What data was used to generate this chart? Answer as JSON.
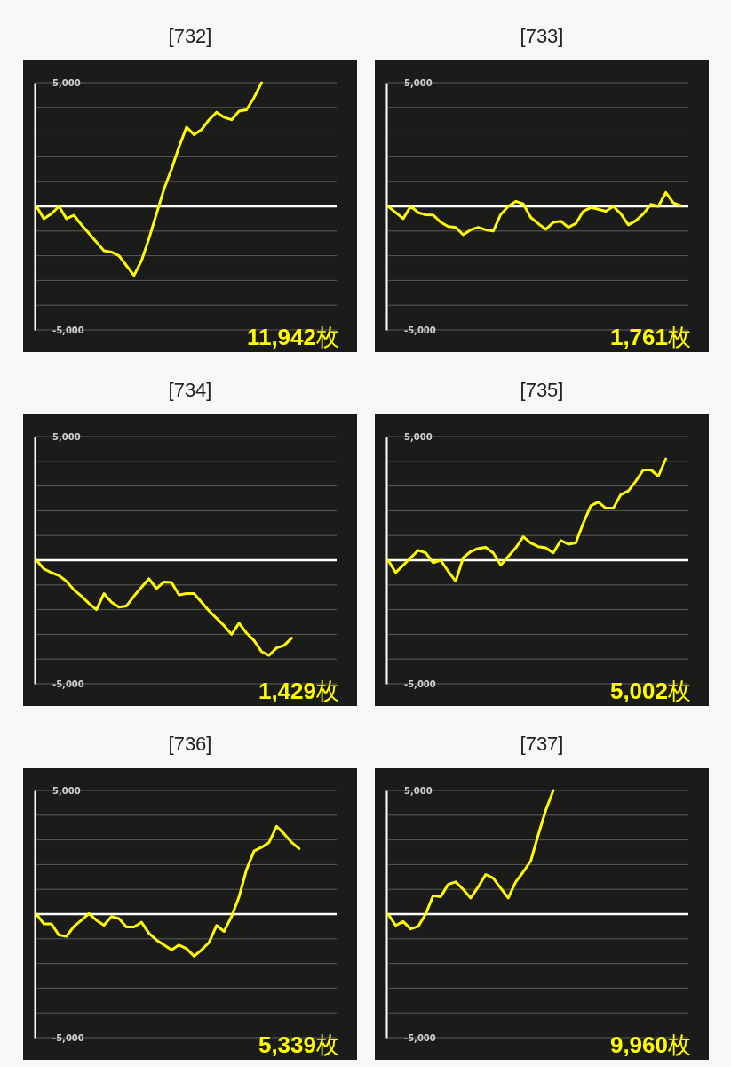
{
  "chart_data": [
    {
      "type": "line",
      "title": "[732]",
      "categories": [
        null,
        null,
        null,
        null,
        null,
        null,
        null,
        null,
        null,
        null,
        null,
        null,
        null,
        null,
        null,
        null,
        null,
        null,
        null,
        null,
        null,
        null,
        null,
        null,
        null,
        null,
        null,
        null,
        null,
        null,
        null,
        null,
        null,
        null,
        null,
        null,
        null,
        null,
        null,
        null,
        null
      ],
      "series": [
        {
          "color": "#ffff00",
          "values": [
            0,
            -500,
            -300,
            0,
            -500,
            -360,
            -750,
            -1100,
            -1450,
            -1800,
            -1850,
            -2000,
            -2400,
            -2800,
            -2200,
            -1300,
            -300,
            700,
            1500,
            2400,
            3200,
            2900,
            3100,
            3500,
            3800,
            3600,
            3500,
            3850,
            3900,
            4400,
            5000,
            null,
            null,
            null,
            null,
            null,
            null,
            null,
            null,
            null,
            null
          ]
        }
      ],
      "ylim": [
        -5000,
        5000
      ],
      "yticks": [
        {
          "value": -5000,
          "label": "-5,000"
        },
        {
          "value": -4000,
          "label": null
        },
        {
          "value": -3000,
          "label": null
        },
        {
          "value": -2000,
          "label": null
        },
        {
          "value": -1000,
          "label": null
        },
        {
          "value": 0,
          "label": null
        },
        {
          "value": 1000,
          "label": null
        },
        {
          "value": 2000,
          "label": null
        },
        {
          "value": 3000,
          "label": null
        },
        {
          "value": 4000,
          "label": null
        },
        {
          "value": 5000,
          "label": "5,000"
        }
      ],
      "grid": "y",
      "tick_labels": "y",
      "ref_lines": [
        {
          "axis": "y",
          "value": 0,
          "color": "#ffffff"
        }
      ],
      "annotations": [
        "11,942枚"
      ]
    },
    {
      "type": "line",
      "title": "[733]",
      "categories": [
        null,
        null,
        null,
        null,
        null,
        null,
        null,
        null,
        null,
        null,
        null,
        null,
        null,
        null,
        null,
        null,
        null,
        null,
        null,
        null,
        null,
        null,
        null,
        null,
        null,
        null,
        null,
        null,
        null,
        null,
        null,
        null,
        null,
        null,
        null,
        null,
        null,
        null,
        null,
        null,
        null
      ],
      "series": [
        {
          "color": "#ffff00",
          "values": [
            0,
            -250,
            -500,
            0,
            -250,
            -340,
            -350,
            -640,
            -820,
            -850,
            -1150,
            -950,
            -850,
            -950,
            -1000,
            -330,
            0,
            200,
            100,
            -450,
            -700,
            -930,
            -650,
            -600,
            -850,
            -700,
            -200,
            -50,
            -120,
            -200,
            0,
            -300,
            -750,
            -580,
            -300,
            80,
            0,
            560,
            140,
            30,
            null
          ]
        }
      ],
      "ylim": [
        -5000,
        5000
      ],
      "yticks": [
        {
          "value": -5000,
          "label": "-5,000"
        },
        {
          "value": -4000,
          "label": null
        },
        {
          "value": -3000,
          "label": null
        },
        {
          "value": -2000,
          "label": null
        },
        {
          "value": -1000,
          "label": null
        },
        {
          "value": 0,
          "label": null
        },
        {
          "value": 1000,
          "label": null
        },
        {
          "value": 2000,
          "label": null
        },
        {
          "value": 3000,
          "label": null
        },
        {
          "value": 4000,
          "label": null
        },
        {
          "value": 5000,
          "label": "5,000"
        }
      ],
      "grid": "y",
      "tick_labels": "y",
      "ref_lines": [
        {
          "axis": "y",
          "value": 0,
          "color": "#ffffff"
        }
      ],
      "annotations": [
        "1,761枚"
      ]
    },
    {
      "type": "line",
      "title": "[734]",
      "categories": [
        null,
        null,
        null,
        null,
        null,
        null,
        null,
        null,
        null,
        null,
        null,
        null,
        null,
        null,
        null,
        null,
        null,
        null,
        null,
        null,
        null,
        null,
        null,
        null,
        null,
        null,
        null,
        null,
        null,
        null,
        null,
        null,
        null,
        null,
        null,
        null,
        null,
        null,
        null,
        null,
        null
      ],
      "series": [
        {
          "color": "#ffff00",
          "values": [
            0,
            -350,
            -500,
            -620,
            -850,
            -1200,
            -1450,
            -1750,
            -2000,
            -1350,
            -1700,
            -1900,
            -1850,
            -1450,
            -1100,
            -750,
            -1150,
            -880,
            -900,
            -1400,
            -1350,
            -1350,
            -1700,
            -2050,
            -2350,
            -2650,
            -3000,
            -2550,
            -2950,
            -3250,
            -3700,
            -3850,
            -3550,
            -3450,
            -3150,
            null,
            null,
            null,
            null,
            null,
            null
          ]
        }
      ],
      "ylim": [
        -5000,
        5000
      ],
      "yticks": [
        {
          "value": -5000,
          "label": "-5,000"
        },
        {
          "value": -4000,
          "label": null
        },
        {
          "value": -3000,
          "label": null
        },
        {
          "value": -2000,
          "label": null
        },
        {
          "value": -1000,
          "label": null
        },
        {
          "value": 0,
          "label": null
        },
        {
          "value": 1000,
          "label": null
        },
        {
          "value": 2000,
          "label": null
        },
        {
          "value": 3000,
          "label": null
        },
        {
          "value": 4000,
          "label": null
        },
        {
          "value": 5000,
          "label": "5,000"
        }
      ],
      "grid": "y",
      "tick_labels": "y",
      "ref_lines": [
        {
          "axis": "y",
          "value": 0,
          "color": "#ffffff"
        }
      ],
      "annotations": [
        "1,429枚"
      ]
    },
    {
      "type": "line",
      "title": "[735]",
      "categories": [
        null,
        null,
        null,
        null,
        null,
        null,
        null,
        null,
        null,
        null,
        null,
        null,
        null,
        null,
        null,
        null,
        null,
        null,
        null,
        null,
        null,
        null,
        null,
        null,
        null,
        null,
        null,
        null,
        null,
        null,
        null,
        null,
        null,
        null,
        null,
        null,
        null,
        null,
        null,
        null,
        null
      ],
      "series": [
        {
          "color": "#ffff00",
          "values": [
            0,
            -500,
            -200,
            100,
            400,
            300,
            -100,
            0,
            -450,
            -850,
            100,
            350,
            480,
            520,
            300,
            -200,
            150,
            500,
            950,
            700,
            550,
            500,
            300,
            800,
            650,
            700,
            1500,
            2200,
            2350,
            2100,
            2100,
            2650,
            2800,
            3200,
            3650,
            3650,
            3400,
            4100,
            null,
            null,
            null
          ]
        }
      ],
      "ylim": [
        -5000,
        5000
      ],
      "yticks": [
        {
          "value": -5000,
          "label": "-5,000"
        },
        {
          "value": -4000,
          "label": null
        },
        {
          "value": -3000,
          "label": null
        },
        {
          "value": -2000,
          "label": null
        },
        {
          "value": -1000,
          "label": null
        },
        {
          "value": 0,
          "label": null
        },
        {
          "value": 1000,
          "label": null
        },
        {
          "value": 2000,
          "label": null
        },
        {
          "value": 3000,
          "label": null
        },
        {
          "value": 4000,
          "label": null
        },
        {
          "value": 5000,
          "label": "5,000"
        }
      ],
      "grid": "y",
      "tick_labels": "y",
      "ref_lines": [
        {
          "axis": "y",
          "value": 0,
          "color": "#ffffff"
        }
      ],
      "annotations": [
        "5,002枚"
      ]
    },
    {
      "type": "line",
      "title": "[736]",
      "categories": [
        null,
        null,
        null,
        null,
        null,
        null,
        null,
        null,
        null,
        null,
        null,
        null,
        null,
        null,
        null,
        null,
        null,
        null,
        null,
        null,
        null,
        null,
        null,
        null,
        null,
        null,
        null,
        null,
        null,
        null,
        null,
        null,
        null,
        null,
        null,
        null,
        null,
        null,
        null,
        null,
        null
      ],
      "series": [
        {
          "color": "#ffff00",
          "values": [
            0,
            -400,
            -400,
            -850,
            -900,
            -500,
            -250,
            20,
            -250,
            -450,
            -100,
            -180,
            -520,
            -520,
            -330,
            -780,
            -1050,
            -1250,
            -1450,
            -1250,
            -1400,
            -1700,
            -1450,
            -1150,
            -460,
            -700,
            -100,
            700,
            1800,
            2550,
            2700,
            2900,
            3550,
            3250,
            2900,
            2650,
            null,
            null,
            null,
            null,
            null
          ]
        }
      ],
      "ylim": [
        -5000,
        5000
      ],
      "yticks": [
        {
          "value": -5000,
          "label": "-5,000"
        },
        {
          "value": -4000,
          "label": null
        },
        {
          "value": -3000,
          "label": null
        },
        {
          "value": -2000,
          "label": null
        },
        {
          "value": -1000,
          "label": null
        },
        {
          "value": 0,
          "label": null
        },
        {
          "value": 1000,
          "label": null
        },
        {
          "value": 2000,
          "label": null
        },
        {
          "value": 3000,
          "label": null
        },
        {
          "value": 4000,
          "label": null
        },
        {
          "value": 5000,
          "label": "5,000"
        }
      ],
      "grid": "y",
      "tick_labels": "y",
      "ref_lines": [
        {
          "axis": "y",
          "value": 0,
          "color": "#ffffff"
        }
      ],
      "annotations": [
        "5,339枚"
      ]
    },
    {
      "type": "line",
      "title": "[737]",
      "categories": [
        null,
        null,
        null,
        null,
        null,
        null,
        null,
        null,
        null,
        null,
        null,
        null,
        null,
        null,
        null,
        null,
        null,
        null,
        null,
        null,
        null,
        null,
        null,
        null,
        null,
        null,
        null,
        null,
        null,
        null,
        null,
        null,
        null,
        null,
        null,
        null,
        null,
        null,
        null,
        null,
        null
      ],
      "series": [
        {
          "color": "#ffff00",
          "values": [
            0,
            -460,
            -300,
            -600,
            -500,
            0,
            750,
            700,
            1200,
            1300,
            1000,
            650,
            1100,
            1600,
            1450,
            1050,
            650,
            1300,
            1700,
            2150,
            3200,
            4200,
            5000,
            null,
            null,
            null,
            null,
            null,
            null,
            null,
            null,
            null,
            null,
            null,
            null,
            null,
            null,
            null,
            null,
            null,
            null
          ]
        }
      ],
      "ylim": [
        -5000,
        5000
      ],
      "yticks": [
        {
          "value": -5000,
          "label": "-5,000"
        },
        {
          "value": -4000,
          "label": null
        },
        {
          "value": -3000,
          "label": null
        },
        {
          "value": -2000,
          "label": null
        },
        {
          "value": -1000,
          "label": null
        },
        {
          "value": 0,
          "label": null
        },
        {
          "value": 1000,
          "label": null
        },
        {
          "value": 2000,
          "label": null
        },
        {
          "value": 3000,
          "label": null
        },
        {
          "value": 4000,
          "label": null
        },
        {
          "value": 5000,
          "label": "5,000"
        }
      ],
      "grid": "y",
      "tick_labels": "y",
      "ref_lines": [
        {
          "axis": "y",
          "value": 0,
          "color": "#ffffff"
        }
      ],
      "annotations": [
        "9,960枚"
      ]
    }
  ]
}
